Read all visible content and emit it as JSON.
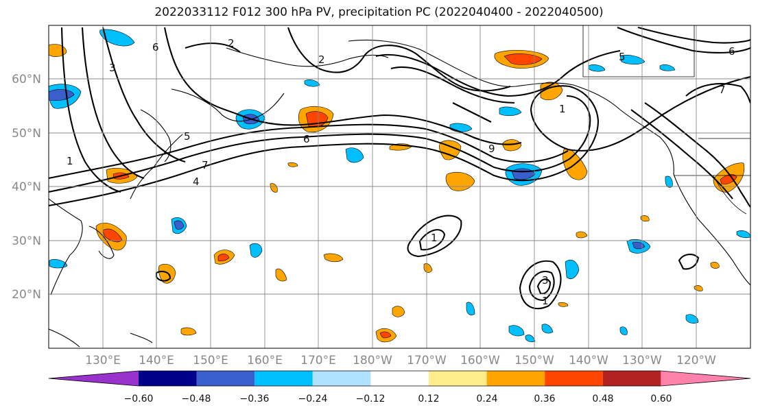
{
  "title": "2022033112 F012 300 hPa PV, precipitation PC (2022040400 - 2022040500)",
  "map": {
    "lat_labels": [
      "60°N",
      "50°N",
      "40°N",
      "30°N",
      "20°N"
    ],
    "lon_labels": [
      "130°E",
      "140°E",
      "150°E",
      "160°E",
      "170°E",
      "180°W",
      "170°W",
      "160°W",
      "150°W",
      "140°W",
      "130°W",
      "120°W"
    ]
  },
  "contour_labels": [
    "3",
    "6",
    "2",
    "1",
    "5",
    "7",
    "4",
    "2",
    "6",
    "9",
    "1",
    "1",
    "3",
    "1",
    "6",
    "5",
    "7"
  ],
  "colorbar": {
    "colors": [
      "#9932cc",
      "#00008b",
      "#3a5fcd",
      "#00bfff",
      "#b0e2ff",
      "#ffffff",
      "#ffec8b",
      "#ffa500",
      "#ff4500",
      "#b22222",
      "#ff82ab"
    ],
    "tick_labels": [
      "−0.60",
      "−0.48",
      "−0.36",
      "−0.24",
      "−0.12",
      "0.12",
      "0.24",
      "0.36",
      "0.48",
      "0.60"
    ]
  }
}
